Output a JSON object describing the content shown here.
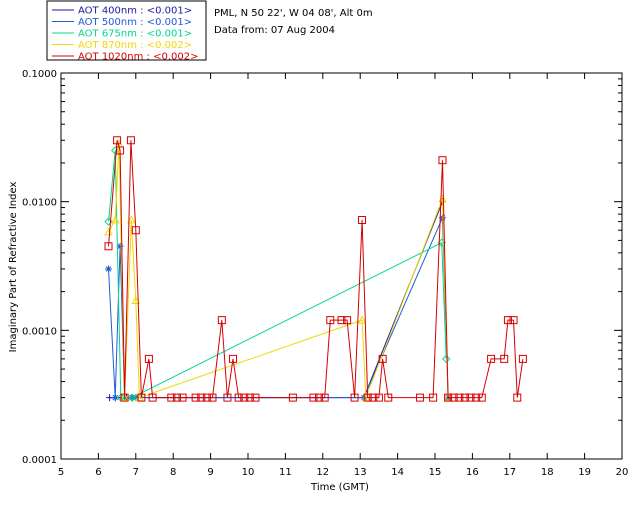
{
  "header": {
    "location": "PML, N 50 22', W 04 08', Alt 0m",
    "date": "Data from: 07 Aug 2004"
  },
  "chart_data": {
    "type": "scatter",
    "xlabel": "Time (GMT)",
    "ylabel": "Imaginary Part of Refractive Index",
    "xlim": [
      5,
      20
    ],
    "ylim": [
      0.0001,
      0.1
    ],
    "yscale": "log",
    "x_ticks": [
      5,
      6,
      7,
      8,
      9,
      10,
      11,
      12,
      13,
      14,
      15,
      16,
      17,
      18,
      19,
      20
    ],
    "y_ticks": [
      {
        "value": 0.0001,
        "label": "0.0001"
      },
      {
        "value": 0.001,
        "label": "0.0010"
      },
      {
        "value": 0.01,
        "label": "0.0100"
      },
      {
        "value": 0.1,
        "label": "0.1000"
      }
    ],
    "legend_position": "top-left",
    "series": [
      {
        "name": "AOT  400nm : <0.001>",
        "color": "#1a1a9c",
        "marker": "plus",
        "points": [
          [
            6.3,
            0.0003
          ],
          [
            6.45,
            0.0003
          ],
          [
            6.6,
            0.0003
          ],
          [
            6.75,
            0.0003
          ],
          [
            6.9,
            0.0003
          ],
          [
            13.1,
            0.0003
          ],
          [
            15.2,
            0.01
          ]
        ]
      },
      {
        "name": "AOT  500nm : <0.001>",
        "color": "#1f5bd9",
        "marker": "asterisk",
        "points": [
          [
            6.27,
            0.003
          ],
          [
            6.45,
            0.0003
          ],
          [
            6.58,
            0.0045
          ],
          [
            6.7,
            0.0003
          ],
          [
            6.9,
            0.0003
          ],
          [
            7.0,
            0.0003
          ],
          [
            13.1,
            0.0003
          ],
          [
            15.2,
            0.0075
          ],
          [
            15.35,
            0.0003
          ]
        ]
      },
      {
        "name": "AOT  675nm : <0.001>",
        "color": "#00d98a",
        "marker": "diamond",
        "points": [
          [
            6.27,
            0.007
          ],
          [
            6.45,
            0.025
          ],
          [
            6.6,
            0.0003
          ],
          [
            6.9,
            0.0003
          ],
          [
            15.18,
            0.0048
          ],
          [
            15.3,
            0.0006
          ]
        ]
      },
      {
        "name": "AOT  870nm : <0.002>",
        "color": "#f0d800",
        "marker": "triangle",
        "points": [
          [
            6.27,
            0.0058
          ],
          [
            6.45,
            0.0072
          ],
          [
            6.55,
            0.028
          ],
          [
            6.7,
            0.0003
          ],
          [
            6.88,
            0.0072
          ],
          [
            7.0,
            0.0017
          ],
          [
            7.1,
            0.0003
          ],
          [
            13.05,
            0.0012
          ],
          [
            13.15,
            0.0003
          ],
          [
            15.2,
            0.0105
          ],
          [
            15.35,
            0.0003
          ]
        ]
      },
      {
        "name": "AOT 1020nm : <0.002>",
        "color": "#d60000",
        "marker": "square",
        "points": [
          [
            6.27,
            0.0045
          ],
          [
            6.5,
            0.03
          ],
          [
            6.58,
            0.025
          ],
          [
            6.7,
            0.0003
          ],
          [
            6.87,
            0.03
          ],
          [
            7.0,
            0.006
          ],
          [
            7.15,
            0.0003
          ],
          [
            7.35,
            0.0006
          ],
          [
            7.45,
            0.0003
          ],
          [
            7.95,
            0.0003
          ],
          [
            8.1,
            0.0003
          ],
          [
            8.25,
            0.0003
          ],
          [
            8.6,
            0.0003
          ],
          [
            8.75,
            0.0003
          ],
          [
            8.9,
            0.0003
          ],
          [
            9.05,
            0.0003
          ],
          [
            9.3,
            0.0012
          ],
          [
            9.45,
            0.0003
          ],
          [
            9.6,
            0.0006
          ],
          [
            9.75,
            0.0003
          ],
          [
            9.9,
            0.0003
          ],
          [
            10.05,
            0.0003
          ],
          [
            10.2,
            0.0003
          ],
          [
            11.2,
            0.0003
          ],
          [
            11.75,
            0.0003
          ],
          [
            11.9,
            0.0003
          ],
          [
            12.05,
            0.0003
          ],
          [
            12.2,
            0.0012
          ],
          [
            12.5,
            0.0012
          ],
          [
            12.65,
            0.0012
          ],
          [
            12.85,
            0.0003
          ],
          [
            13.05,
            0.0072
          ],
          [
            13.2,
            0.0003
          ],
          [
            13.35,
            0.0003
          ],
          [
            13.5,
            0.0003
          ],
          [
            13.6,
            0.0006
          ],
          [
            13.75,
            0.0003
          ],
          [
            14.6,
            0.0003
          ],
          [
            14.95,
            0.0003
          ],
          [
            15.2,
            0.021
          ],
          [
            15.35,
            0.0003
          ],
          [
            15.5,
            0.0003
          ],
          [
            15.65,
            0.0003
          ],
          [
            15.8,
            0.0003
          ],
          [
            15.95,
            0.0003
          ],
          [
            16.1,
            0.0003
          ],
          [
            16.25,
            0.0003
          ],
          [
            16.5,
            0.0006
          ],
          [
            16.85,
            0.0006
          ],
          [
            16.95,
            0.0012
          ],
          [
            17.1,
            0.0012
          ],
          [
            17.2,
            0.0003
          ],
          [
            17.35,
            0.0006
          ]
        ]
      }
    ]
  }
}
